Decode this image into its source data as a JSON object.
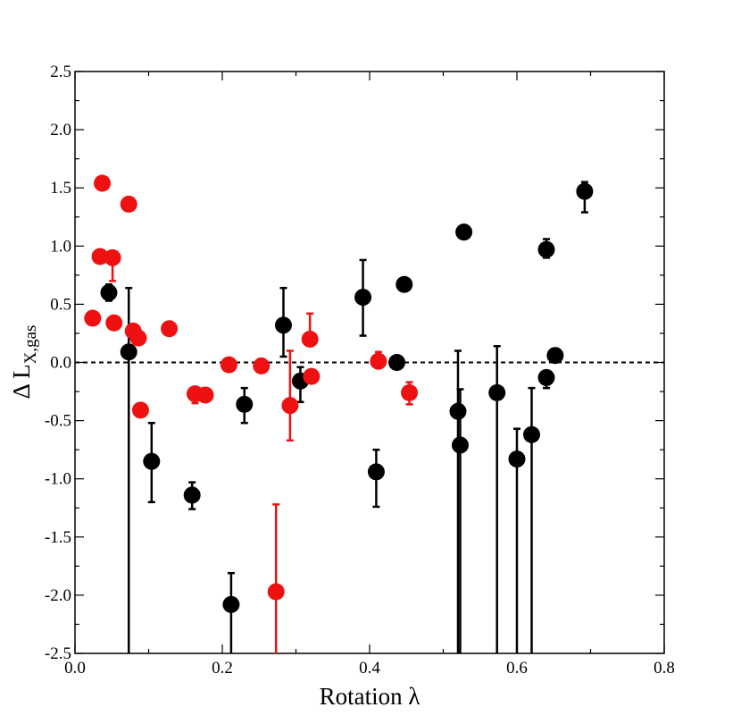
{
  "chart_data": {
    "type": "scatter",
    "xlabel": "Rotation λ",
    "ylabel": {
      "prefix": "Δ L",
      "subscript": "X,gas"
    },
    "xlim": [
      0.0,
      0.8
    ],
    "ylim": [
      -2.5,
      2.5
    ],
    "x_ticks": [
      0.0,
      0.2,
      0.4,
      0.6,
      0.8
    ],
    "x_tick_labels": [
      "0.0",
      "0.2",
      "0.4",
      "0.6",
      "0.8"
    ],
    "y_ticks": [
      2.5,
      2.0,
      1.5,
      1.0,
      0.5,
      0.0,
      -0.5,
      -1.0,
      -1.5,
      -2.0,
      -2.5
    ],
    "y_tick_labels": [
      "2.5",
      "2.0",
      "1.5",
      "1.0",
      "0.5",
      "0.0",
      "-0.5",
      "-1.0",
      "-1.5",
      "-2.0",
      "-2.5"
    ],
    "grid": false,
    "reference_line": {
      "y": 0.0,
      "style": "dashed",
      "color": "#000000"
    },
    "series": [
      {
        "color": "#000000",
        "points": [
          {
            "x": 0.046,
            "y": 0.6,
            "lo": 0.53,
            "hi": 0.67
          },
          {
            "x": 0.073,
            "y": 0.09,
            "lo": -2.5,
            "hi": 0.64
          },
          {
            "x": 0.104,
            "y": -0.85,
            "lo": -1.2,
            "hi": -0.52
          },
          {
            "x": 0.159,
            "y": -1.14,
            "lo": -1.26,
            "hi": -1.03
          },
          {
            "x": 0.212,
            "y": -2.08,
            "lo": -2.5,
            "hi": -1.81
          },
          {
            "x": 0.23,
            "y": -0.36,
            "lo": -0.52,
            "hi": -0.22
          },
          {
            "x": 0.283,
            "y": 0.32,
            "lo": 0.05,
            "hi": 0.64
          },
          {
            "x": 0.306,
            "y": -0.16,
            "lo": -0.34,
            "hi": -0.04
          },
          {
            "x": 0.391,
            "y": 0.56,
            "lo": 0.23,
            "hi": 0.88
          },
          {
            "x": 0.409,
            "y": -0.94,
            "lo": -1.24,
            "hi": -0.75
          },
          {
            "x": 0.437,
            "y": 0.0,
            "lo": -0.01,
            "hi": 0.01
          },
          {
            "x": 0.447,
            "y": 0.67,
            "lo": 0.66,
            "hi": 0.68
          },
          {
            "x": 0.52,
            "y": -0.42,
            "lo": -2.5,
            "hi": 0.1
          },
          {
            "x": 0.523,
            "y": -0.71,
            "lo": -2.5,
            "hi": -0.23
          },
          {
            "x": 0.528,
            "y": 1.12,
            "lo": 1.11,
            "hi": 1.13
          },
          {
            "x": 0.573,
            "y": -0.26,
            "lo": -2.5,
            "hi": 0.14
          },
          {
            "x": 0.6,
            "y": -0.83,
            "lo": -2.5,
            "hi": -0.57
          },
          {
            "x": 0.62,
            "y": -0.62,
            "lo": -2.5,
            "hi": -0.22
          },
          {
            "x": 0.64,
            "y": -0.13,
            "lo": -0.22,
            "hi": -0.08
          },
          {
            "x": 0.64,
            "y": 0.97,
            "lo": 0.9,
            "hi": 1.06
          },
          {
            "x": 0.652,
            "y": 0.06,
            "lo": 0.05,
            "hi": 0.07
          },
          {
            "x": 0.692,
            "y": 1.47,
            "lo": 1.29,
            "hi": 1.55
          }
        ]
      },
      {
        "color": "#ee1111",
        "points": [
          {
            "x": 0.024,
            "y": 0.38,
            "lo": 0.37,
            "hi": 0.39
          },
          {
            "x": 0.034,
            "y": 0.91,
            "lo": 0.9,
            "hi": 0.92
          },
          {
            "x": 0.037,
            "y": 1.54,
            "lo": 1.53,
            "hi": 1.55
          },
          {
            "x": 0.051,
            "y": 0.9,
            "lo": 0.7,
            "hi": 0.91
          },
          {
            "x": 0.053,
            "y": 0.34,
            "lo": 0.33,
            "hi": 0.35
          },
          {
            "x": 0.073,
            "y": 1.36,
            "lo": 1.35,
            "hi": 1.37
          },
          {
            "x": 0.079,
            "y": 0.27,
            "lo": 0.26,
            "hi": 0.28
          },
          {
            "x": 0.086,
            "y": 0.21,
            "lo": 0.2,
            "hi": 0.22
          },
          {
            "x": 0.089,
            "y": -0.41,
            "lo": -0.42,
            "hi": -0.4
          },
          {
            "x": 0.128,
            "y": 0.29,
            "lo": 0.28,
            "hi": 0.3
          },
          {
            "x": 0.163,
            "y": -0.27,
            "lo": -0.35,
            "hi": -0.26
          },
          {
            "x": 0.177,
            "y": -0.28,
            "lo": -0.29,
            "hi": -0.27
          },
          {
            "x": 0.209,
            "y": -0.02,
            "lo": -0.03,
            "hi": -0.01
          },
          {
            "x": 0.253,
            "y": -0.03,
            "lo": -0.04,
            "hi": -0.02
          },
          {
            "x": 0.273,
            "y": -1.97,
            "lo": -2.5,
            "hi": -1.22
          },
          {
            "x": 0.292,
            "y": -0.37,
            "lo": -0.67,
            "hi": 0.1
          },
          {
            "x": 0.319,
            "y": 0.2,
            "lo": 0.19,
            "hi": 0.42
          },
          {
            "x": 0.321,
            "y": -0.12,
            "lo": -0.13,
            "hi": -0.11
          },
          {
            "x": 0.412,
            "y": 0.01,
            "lo": 0.0,
            "hi": 0.09
          },
          {
            "x": 0.454,
            "y": -0.26,
            "lo": -0.36,
            "hi": -0.17
          }
        ]
      }
    ]
  }
}
